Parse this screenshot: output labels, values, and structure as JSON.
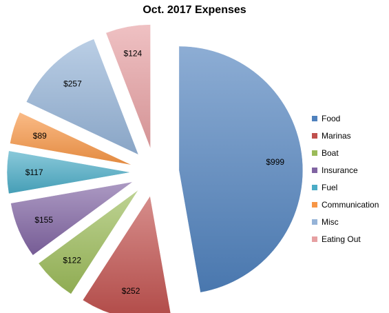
{
  "chart_data": {
    "type": "pie",
    "title": "Oct. 2017 Expenses",
    "legend_position": "right",
    "exploded": true,
    "slices": [
      {
        "name": "Food",
        "value": 999,
        "label": "$999",
        "color": "#4f81bd"
      },
      {
        "name": "Marinas",
        "value": 252,
        "label": "$252",
        "color": "#c0504d"
      },
      {
        "name": "Boat",
        "value": 122,
        "label": "$122",
        "color": "#9bbb59"
      },
      {
        "name": "Insurance",
        "value": 155,
        "label": "$155",
        "color": "#8064a2"
      },
      {
        "name": "Fuel",
        "value": 117,
        "label": "$117",
        "color": "#4bacc6"
      },
      {
        "name": "Communication",
        "value": 89,
        "label": "$89",
        "color": "#f79646"
      },
      {
        "name": "Misc",
        "value": 257,
        "label": "$257",
        "color": "#95b3d7"
      },
      {
        "name": "Eating Out",
        "value": 124,
        "label": "$124",
        "color": "#e6a0a2"
      }
    ]
  }
}
